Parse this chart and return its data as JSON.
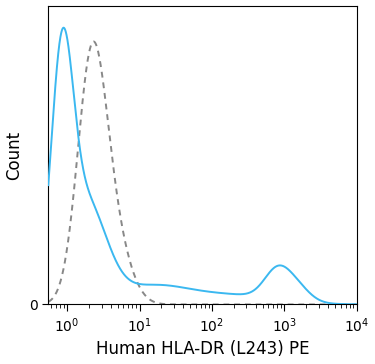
{
  "xlabel": "Human HLA-DR (L243) PE",
  "ylabel": "Count",
  "xlim": [
    0.55,
    10000
  ],
  "ylim": [
    0,
    1.08
  ],
  "background_color": "#ffffff",
  "solid_color": "#3bb8f0",
  "dashed_color": "#888888",
  "solid_linewidth": 1.4,
  "dashed_linewidth": 1.4,
  "xlabel_fontsize": 12,
  "ylabel_fontsize": 12,
  "tick_fontsize": 10,
  "xticks": [
    1,
    10,
    100,
    1000,
    10000
  ],
  "xtick_labels": [
    "$10^0$",
    "$10^1$",
    "$10^2$",
    "$10^3$",
    "$10^4$"
  ]
}
